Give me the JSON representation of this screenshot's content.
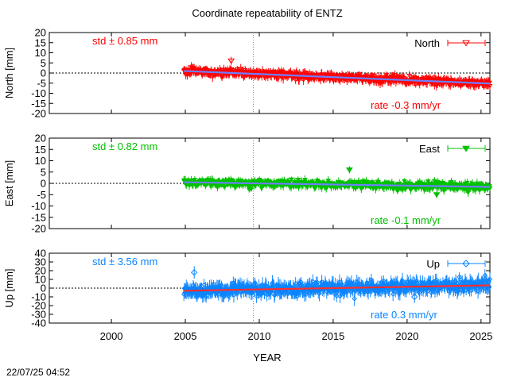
{
  "chart_data": {
    "type": "scatter",
    "title": "Coordinate repeatability of ENTZ",
    "xlabel": "YEAR",
    "xlim": [
      1995.8,
      2025.6
    ],
    "xticks": [
      2000,
      2005,
      2010,
      2015,
      2020,
      2025
    ],
    "xtick_labels": [
      "2000",
      "2005",
      "2010",
      "2015",
      "2020",
      "2025"
    ],
    "vertical_marker_year": 2009.6,
    "timestamp": "22/07/25 04:52",
    "panels": [
      {
        "name": "north",
        "ylabel": "North [mm]",
        "legend": "North",
        "legend_marker": "open-triangle-down",
        "std_label": "std ± 0.85 mm",
        "rate_label": "rate -0.3 mm/yr",
        "color": "#ff0000",
        "trend_color": "#6f7fff",
        "ylim": [
          -20,
          20
        ],
        "yticks": [
          -20,
          -15,
          -10,
          -5,
          0,
          5,
          10,
          15,
          20
        ],
        "ytick_labels": [
          "-20",
          "-15",
          "-10",
          "-5",
          "0",
          "5",
          "10",
          "15",
          "20"
        ],
        "start_year": 2004.9,
        "end_year": 2025.6,
        "start_value": 1.0,
        "rate_mm_per_yr": -0.3,
        "scatter_std": 0.85,
        "error_bar": 2.0,
        "outliers": [
          {
            "year": 2008.1,
            "value": 6.0
          }
        ]
      },
      {
        "name": "east",
        "ylabel": "East [mm]",
        "legend": "East",
        "legend_marker": "filled-triangle-down",
        "std_label": "std ± 0.82 mm",
        "rate_label": "rate -0.1 mm/yr",
        "color": "#00c000",
        "trend_color": "#6f7fff",
        "ylim": [
          -20,
          20
        ],
        "yticks": [
          -20,
          -15,
          -10,
          -5,
          0,
          5,
          10,
          15,
          20
        ],
        "ytick_labels": [
          "-20",
          "-15",
          "-10",
          "-5",
          "0",
          "5",
          "10",
          "15",
          "20"
        ],
        "start_year": 2004.9,
        "end_year": 2025.6,
        "start_value": 0.5,
        "rate_mm_per_yr": -0.1,
        "scatter_std": 0.82,
        "error_bar": 1.6,
        "outliers": [
          {
            "year": 2016.1,
            "value": 6.0
          },
          {
            "year": 2022.0,
            "value": -5.0
          }
        ]
      },
      {
        "name": "up",
        "ylabel": "Up [mm]",
        "legend": "Up",
        "legend_marker": "open-diamond",
        "std_label": "std ± 3.56 mm",
        "rate_label": "rate  0.3 mm/yr",
        "color": "#0a84ff",
        "trend_color": "#ff3030",
        "ylim": [
          -40,
          40
        ],
        "yticks": [
          -40,
          -30,
          -20,
          -10,
          0,
          10,
          20,
          30,
          40
        ],
        "ytick_labels": [
          "-40",
          "-30",
          "-20",
          "-10",
          "0",
          "10",
          "20",
          "30",
          "40"
        ],
        "start_year": 2004.9,
        "end_year": 2025.6,
        "start_value": -3.0,
        "rate_mm_per_yr": 0.3,
        "scatter_std": 3.56,
        "error_bar": 7.0,
        "outliers": [
          {
            "year": 2005.6,
            "value": 18.0
          },
          {
            "year": 2020.5,
            "value": -10.0
          }
        ]
      }
    ]
  }
}
